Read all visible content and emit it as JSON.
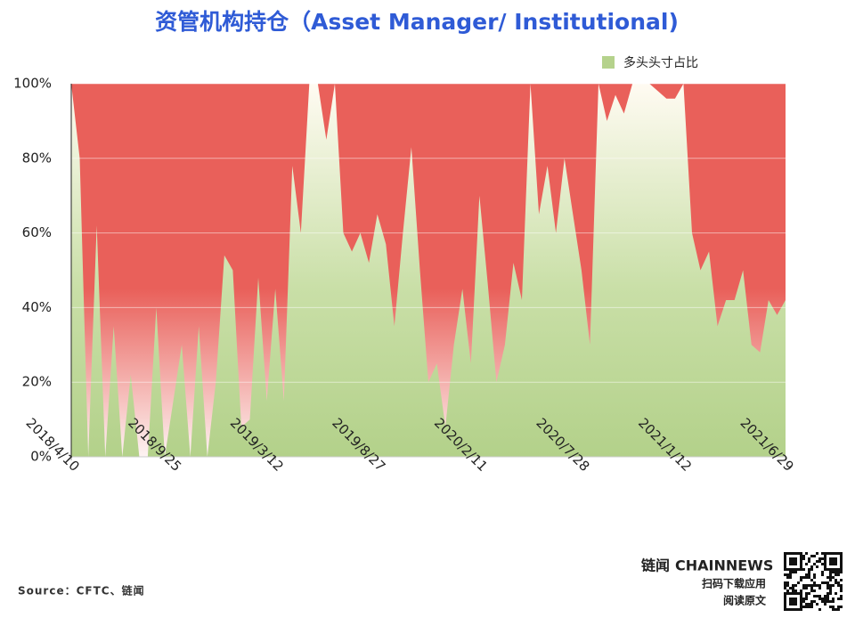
{
  "chart_data": {
    "type": "area",
    "title": "资管机构持仓（Asset Manager/ Institutional)",
    "x": [
      "2018/4/10",
      "2018/4/24",
      "2018/5/8",
      "2018/5/22",
      "2018/6/5",
      "2018/6/19",
      "2018/7/3",
      "2018/7/17",
      "2018/7/31",
      "2018/8/14",
      "2018/8/28",
      "2018/9/11",
      "2018/9/25",
      "2018/10/9",
      "2018/10/23",
      "2018/11/6",
      "2018/11/20",
      "2018/12/4",
      "2018/12/18",
      "2019/1/1",
      "2019/1/15",
      "2019/1/29",
      "2019/2/12",
      "2019/2/26",
      "2019/3/12",
      "2019/3/26",
      "2019/4/9",
      "2019/4/23",
      "2019/5/7",
      "2019/5/21",
      "2019/6/4",
      "2019/6/18",
      "2019/7/2",
      "2019/7/16",
      "2019/7/30",
      "2019/8/13",
      "2019/8/27",
      "2019/9/10",
      "2019/9/24",
      "2019/10/8",
      "2019/10/22",
      "2019/11/5",
      "2019/11/19",
      "2019/12/3",
      "2019/12/17",
      "2019/12/31",
      "2020/1/14",
      "2020/1/28",
      "2020/2/11",
      "2020/2/25",
      "2020/3/10",
      "2020/3/24",
      "2020/4/7",
      "2020/4/21",
      "2020/5/5",
      "2020/5/19",
      "2020/6/2",
      "2020/6/16",
      "2020/6/30",
      "2020/7/14",
      "2020/7/28",
      "2020/8/11",
      "2020/8/25",
      "2020/9/8",
      "2020/9/22",
      "2020/10/6",
      "2020/10/20",
      "2020/11/3",
      "2020/11/17",
      "2020/12/1",
      "2020/12/15",
      "2020/12/29",
      "2021/1/12",
      "2021/1/26",
      "2021/2/9",
      "2021/2/23",
      "2021/3/9",
      "2021/3/23",
      "2021/4/6",
      "2021/4/20",
      "2021/5/4",
      "2021/5/18",
      "2021/6/1",
      "2021/6/15",
      "2021/6/29"
    ],
    "series": [
      {
        "name": "多头头寸占比",
        "color": "#b5d28c",
        "values": [
          100,
          80,
          0,
          62,
          0,
          35,
          0,
          22,
          0,
          0,
          40,
          0,
          15,
          30,
          0,
          35,
          0,
          20,
          54,
          50,
          8,
          10,
          48,
          15,
          45,
          15,
          78,
          60,
          100,
          100,
          85,
          100,
          60,
          55,
          60,
          52,
          65,
          57,
          35,
          60,
          83,
          50,
          20,
          25,
          8,
          30,
          45,
          25,
          70,
          46,
          20,
          30,
          52,
          42,
          100,
          65,
          78,
          60,
          80,
          65,
          50,
          30,
          100,
          90,
          97,
          92,
          100,
          100,
          100,
          98,
          96,
          96,
          100,
          60,
          50,
          55,
          35,
          42,
          42,
          50,
          30,
          28,
          42,
          38,
          42
        ]
      }
    ],
    "background_color": "#e9605a",
    "xticks": [
      "2018/4/10",
      "2018/9/25",
      "2019/3/12",
      "2019/8/27",
      "2020/2/11",
      "2020/7/28",
      "2021/1/12",
      "2021/6/29"
    ],
    "ylim": [
      0,
      100
    ],
    "yticks": [
      {
        "value": 0,
        "label": "0%"
      },
      {
        "value": 20,
        "label": "20%"
      },
      {
        "value": 40,
        "label": "40%"
      },
      {
        "value": 60,
        "label": "60%"
      },
      {
        "value": 80,
        "label": "80%"
      },
      {
        "value": 100,
        "label": "100%"
      }
    ],
    "grid": true,
    "legend": "top-right"
  },
  "footer": {
    "source": "Source：CFTC、链闻",
    "brand_cn": "链闻",
    "brand_en": "CHAINNEWS",
    "line1": "扫码下载应用",
    "line2": "阅读原文"
  }
}
